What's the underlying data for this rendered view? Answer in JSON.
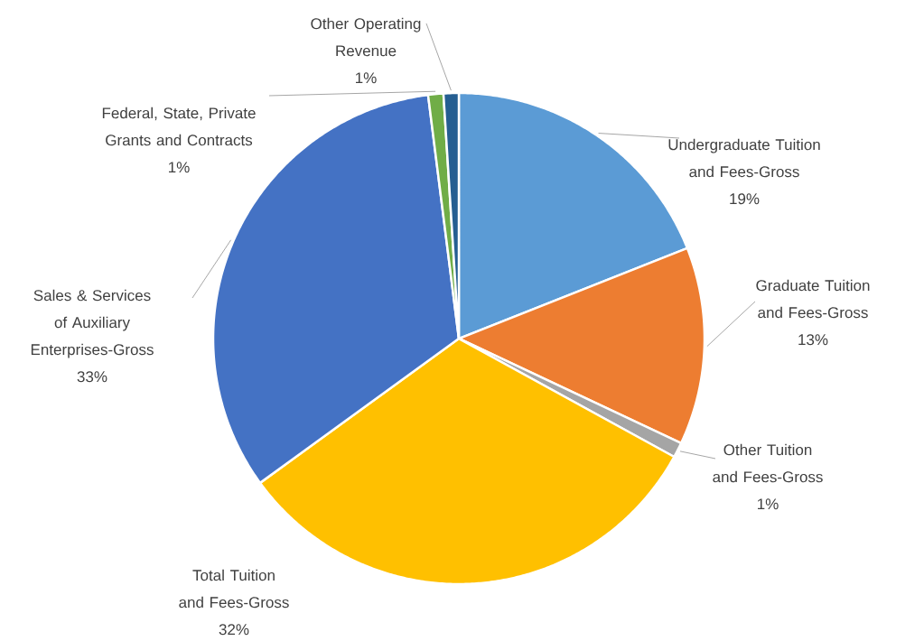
{
  "chart_data": {
    "type": "pie",
    "categories": [
      "Undergraduate Tuition and Fees-Gross",
      "Graduate Tuition and Fees-Gross",
      "Other Tuition and Fees-Gross",
      "Total Tuition and Fees-Gross",
      "Sales & Services of Auxiliary Enterprises-Gross",
      "Federal, State, Private Grants and Contracts",
      "Other Operating Revenue"
    ],
    "values": [
      19,
      13,
      1,
      32,
      33,
      1,
      1
    ],
    "value_labels": [
      "19%",
      "13%",
      "1%",
      "32%",
      "33%",
      "1%",
      "1%"
    ],
    "colors": [
      "#5b9bd5",
      "#ed7d31",
      "#a5a5a5",
      "#ffc000",
      "#4472c4",
      "#70ad47",
      "#255e91"
    ]
  }
}
